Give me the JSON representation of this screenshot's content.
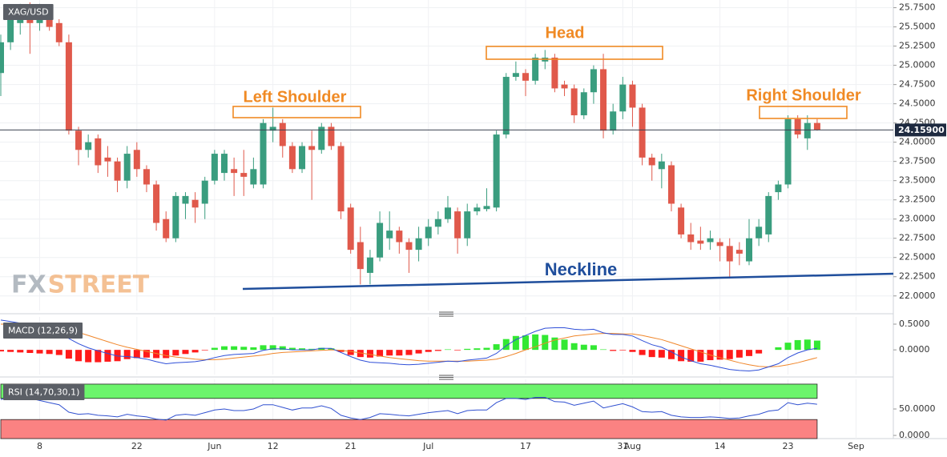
{
  "chart_data": [
    {
      "type": "candlestick",
      "title": "XAG/USD",
      "categories": [
        null,
        null,
        null,
        null,
        "8",
        null,
        null,
        null,
        null,
        null,
        null,
        null,
        null,
        null,
        "22",
        null,
        null,
        null,
        null,
        null,
        null,
        null,
        "Jun",
        null,
        null,
        null,
        null,
        null,
        "12",
        null,
        null,
        null,
        null,
        null,
        null,
        null,
        "21",
        null,
        null,
        null,
        null,
        null,
        null,
        null,
        "Jul",
        null,
        null,
        null,
        null,
        null,
        null,
        null,
        null,
        null,
        "17",
        null,
        null,
        null,
        null,
        null,
        null,
        null,
        null,
        null,
        "31",
        "Aug",
        null,
        null,
        null,
        null,
        null,
        null,
        null,
        null,
        "14",
        null,
        null,
        null,
        null,
        null,
        null,
        "23",
        null,
        null,
        null,
        null,
        null,
        null,
        "Sep",
        null,
        null,
        null
      ],
      "open": [
        24.9,
        25.3,
        25.55,
        25.75,
        25.55,
        25.7,
        25.55,
        25.3,
        24.15,
        23.9,
        24.05,
        23.8,
        23.75,
        23.5,
        23.9,
        23.65,
        23.45,
        23.0,
        22.75,
        23.2,
        23.25,
        23.2,
        23.5,
        23.6,
        23.65,
        23.6,
        23.45,
        23.45,
        24.15,
        24.25,
        23.95,
        23.65,
        23.95,
        23.9,
        24.2,
        23.95,
        23.15,
        22.7,
        22.3,
        22.5,
        22.75,
        22.85,
        22.7,
        22.6,
        22.75,
        22.9,
        23.0,
        23.1,
        22.75,
        23.1,
        23.13,
        23.15,
        24.1,
        24.85,
        24.9,
        24.8,
        25.05,
        25.1,
        24.75,
        24.7,
        24.35,
        24.65,
        24.95,
        24.15,
        24.4,
        24.75,
        24.45,
        23.8,
        23.65,
        23.7,
        23.15,
        22.8,
        22.72,
        22.7,
        22.7,
        22.65,
        22.6,
        22.45,
        22.75,
        22.8,
        23.35,
        23.45,
        24.3,
        24.05,
        24.25,
        null,
        null,
        null,
        null,
        null,
        null,
        null
      ],
      "high": [
        25.4,
        25.7,
        25.8,
        25.82,
        25.8,
        25.75,
        25.6,
        25.4,
        24.2,
        24.1,
        24.1,
        23.95,
        23.8,
        23.95,
        24.0,
        23.7,
        23.5,
        23.1,
        23.35,
        23.35,
        23.35,
        23.55,
        23.9,
        23.9,
        23.8,
        23.9,
        23.8,
        24.3,
        24.45,
        24.3,
        24.0,
        24.0,
        24.15,
        24.25,
        24.25,
        24.0,
        23.2,
        22.9,
        22.6,
        23.1,
        23.1,
        22.9,
        22.75,
        22.9,
        23.0,
        23.1,
        23.3,
        23.15,
        23.2,
        23.2,
        23.4,
        24.15,
        24.9,
        25.05,
        24.95,
        25.15,
        25.2,
        25.15,
        24.8,
        24.75,
        24.7,
        25.0,
        25.15,
        24.5,
        24.85,
        24.8,
        24.5,
        23.85,
        23.85,
        23.75,
        23.2,
        22.95,
        22.9,
        22.85,
        22.75,
        22.75,
        22.7,
        23.0,
        23.0,
        23.35,
        23.5,
        24.35,
        24.35,
        24.35,
        24.3,
        null,
        null,
        null,
        null,
        null,
        null,
        null
      ],
      "low": [
        24.6,
        25.2,
        25.4,
        25.15,
        25.45,
        25.45,
        25.25,
        24.1,
        23.7,
        23.8,
        23.6,
        23.55,
        23.35,
        23.4,
        23.55,
        23.35,
        22.85,
        22.7,
        22.7,
        23.0,
        22.95,
        23.0,
        23.45,
        23.5,
        23.3,
        23.3,
        23.4,
        23.4,
        24.0,
        23.8,
        23.6,
        23.6,
        23.25,
        23.85,
        23.9,
        23.0,
        22.55,
        22.15,
        22.15,
        22.45,
        22.6,
        22.55,
        22.3,
        22.45,
        22.65,
        22.8,
        22.95,
        22.55,
        22.65,
        23.05,
        23.1,
        23.1,
        24.05,
        24.8,
        24.6,
        24.75,
        24.95,
        24.65,
        24.6,
        24.25,
        24.3,
        24.5,
        24.05,
        24.1,
        24.3,
        24.2,
        23.7,
        23.5,
        23.4,
        23.1,
        22.75,
        22.6,
        22.6,
        22.6,
        22.45,
        22.25,
        22.4,
        22.4,
        22.65,
        22.7,
        23.25,
        23.4,
        24.05,
        23.9,
        24.15,
        null,
        null,
        null,
        null,
        null,
        null,
        null
      ],
      "close": [
        25.3,
        25.6,
        25.7,
        25.55,
        25.7,
        25.5,
        25.3,
        24.15,
        23.9,
        24.0,
        23.7,
        23.75,
        23.5,
        23.85,
        23.65,
        23.45,
        22.95,
        22.75,
        23.3,
        23.3,
        23.15,
        23.5,
        23.85,
        23.85,
        23.6,
        23.55,
        23.65,
        24.25,
        24.2,
        23.95,
        23.65,
        23.95,
        23.9,
        24.2,
        23.95,
        23.1,
        22.6,
        22.35,
        22.5,
        22.95,
        22.85,
        22.7,
        22.6,
        22.75,
        22.9,
        23.0,
        23.15,
        22.75,
        23.1,
        23.15,
        23.17,
        24.1,
        24.85,
        24.9,
        24.8,
        25.1,
        25.1,
        24.7,
        24.7,
        24.35,
        24.65,
        24.95,
        24.15,
        24.4,
        24.75,
        24.45,
        23.8,
        23.7,
        23.75,
        23.2,
        22.8,
        22.7,
        22.68,
        22.75,
        22.65,
        22.45,
        22.55,
        22.75,
        22.9,
        23.3,
        23.45,
        24.3,
        24.1,
        24.25,
        24.159,
        null,
        null,
        null,
        null,
        null,
        null,
        null
      ],
      "up_color": "#3a9d7f",
      "down_color": "#e0594b",
      "ylim": [
        21.81,
        25.85
      ],
      "yticks": [
        {
          "value": 22.0,
          "label": "22.0000"
        },
        {
          "value": 22.25,
          "label": "22.2500"
        },
        {
          "value": 22.5,
          "label": "22.5000"
        },
        {
          "value": 22.75,
          "label": "22.7500"
        },
        {
          "value": 23.0,
          "label": "23.0000"
        },
        {
          "value": 23.25,
          "label": "23.2500"
        },
        {
          "value": 23.5,
          "label": "23.5000"
        },
        {
          "value": 23.75,
          "label": "23.7500"
        },
        {
          "value": 24.0,
          "label": "24.0000"
        },
        {
          "value": 24.25,
          "label": "24.2500"
        },
        {
          "value": 24.5,
          "label": "24.5000"
        },
        {
          "value": 24.75,
          "label": "24.7500"
        },
        {
          "value": 25.0,
          "label": "25.0000"
        },
        {
          "value": 25.25,
          "label": "25.2500"
        },
        {
          "value": 25.5,
          "label": "25.5000"
        },
        {
          "value": 25.75,
          "label": "25.7500"
        }
      ],
      "grid": true,
      "last_price": {
        "value": 24.159,
        "label": "24.15900"
      },
      "annotations": [
        "Left Shoulder",
        "Head",
        "Right Shoulder",
        "Neckline"
      ],
      "watermark": [
        "FX",
        "STREET"
      ]
    },
    {
      "type": "macd",
      "title": "MACD (12,26,9)",
      "histogram": [
        -0.03,
        -0.04,
        -0.05,
        -0.06,
        -0.07,
        -0.08,
        -0.1,
        -0.17,
        -0.22,
        -0.24,
        -0.24,
        -0.23,
        -0.22,
        -0.18,
        -0.16,
        -0.15,
        -0.16,
        -0.16,
        -0.11,
        -0.08,
        -0.05,
        -0.01,
        0.04,
        0.07,
        0.07,
        0.06,
        0.05,
        0.09,
        0.09,
        0.07,
        0.04,
        0.03,
        0.02,
        0.04,
        0.03,
        -0.04,
        -0.1,
        -0.14,
        -0.15,
        -0.13,
        -0.11,
        -0.11,
        -0.1,
        -0.07,
        -0.04,
        -0.02,
        0.01,
        -0.01,
        0.02,
        0.03,
        0.04,
        0.11,
        0.21,
        0.27,
        0.28,
        0.3,
        0.29,
        0.24,
        0.2,
        0.13,
        0.1,
        0.09,
        0.01,
        -0.02,
        -0.01,
        -0.04,
        -0.1,
        -0.14,
        -0.15,
        -0.18,
        -0.22,
        -0.23,
        -0.23,
        -0.2,
        -0.19,
        -0.18,
        -0.15,
        -0.12,
        -0.07,
        0.0,
        0.05,
        0.14,
        0.19,
        0.2,
        0.18,
        null,
        null,
        null,
        null,
        null,
        null,
        null
      ],
      "macd": [
        0.58,
        0.55,
        0.52,
        0.48,
        0.44,
        0.4,
        0.34,
        0.22,
        0.12,
        0.04,
        -0.02,
        -0.07,
        -0.12,
        -0.13,
        -0.15,
        -0.18,
        -0.23,
        -0.27,
        -0.25,
        -0.24,
        -0.23,
        -0.2,
        -0.15,
        -0.11,
        -0.09,
        -0.08,
        -0.07,
        -0.01,
        0.02,
        0.02,
        0.0,
        0.0,
        0.0,
        0.03,
        0.03,
        -0.05,
        -0.13,
        -0.2,
        -0.24,
        -0.25,
        -0.26,
        -0.28,
        -0.29,
        -0.28,
        -0.26,
        -0.24,
        -0.22,
        -0.23,
        -0.2,
        -0.18,
        -0.16,
        -0.07,
        0.08,
        0.2,
        0.28,
        0.36,
        0.42,
        0.43,
        0.43,
        0.4,
        0.39,
        0.4,
        0.33,
        0.3,
        0.3,
        0.27,
        0.18,
        0.1,
        0.05,
        -0.04,
        -0.14,
        -0.21,
        -0.27,
        -0.3,
        -0.34,
        -0.38,
        -0.4,
        -0.41,
        -0.39,
        -0.33,
        -0.27,
        -0.15,
        -0.06,
        0.0,
        0.03,
        null,
        null,
        null,
        null,
        null,
        null,
        null
      ],
      "signal": [
        0.5,
        0.5,
        0.5,
        0.49,
        0.48,
        0.46,
        0.44,
        0.39,
        0.34,
        0.28,
        0.22,
        0.16,
        0.1,
        0.05,
        0.01,
        -0.03,
        -0.07,
        -0.11,
        -0.14,
        -0.16,
        -0.18,
        -0.19,
        -0.19,
        -0.18,
        -0.16,
        -0.14,
        -0.12,
        -0.1,
        -0.07,
        -0.05,
        -0.04,
        -0.03,
        -0.02,
        -0.01,
        0.0,
        -0.01,
        -0.03,
        -0.06,
        -0.09,
        -0.12,
        -0.15,
        -0.17,
        -0.19,
        -0.21,
        -0.22,
        -0.22,
        -0.22,
        -0.22,
        -0.22,
        -0.21,
        -0.2,
        -0.18,
        -0.13,
        -0.07,
        0.0,
        0.06,
        0.13,
        0.19,
        0.23,
        0.27,
        0.29,
        0.31,
        0.32,
        0.32,
        0.31,
        0.31,
        0.28,
        0.24,
        0.2,
        0.14,
        0.08,
        0.02,
        -0.04,
        -0.1,
        -0.15,
        -0.2,
        -0.25,
        -0.29,
        -0.32,
        -0.33,
        -0.32,
        -0.29,
        -0.25,
        -0.2,
        -0.15,
        null,
        null,
        null,
        null,
        null,
        null,
        null
      ],
      "up_color": "#33e833",
      "down_color": "#ff1a1a",
      "macd_color": "#2f4fd8",
      "signal_color": "#f0862a",
      "ylim": [
        -0.48,
        0.64
      ],
      "yticks": [
        {
          "value": 0.5,
          "label": "0.5000"
        },
        {
          "value": 0.0,
          "label": "0.0000"
        }
      ]
    },
    {
      "type": "line",
      "title": "RSI (14,70,30,1)",
      "values": [
        68,
        72,
        74,
        70,
        66,
        62,
        58,
        44,
        40,
        41,
        38,
        37,
        35,
        40,
        37,
        35,
        31,
        29,
        38,
        40,
        38,
        43,
        48,
        50,
        47,
        47,
        50,
        58,
        58,
        53,
        48,
        52,
        52,
        56,
        51,
        38,
        33,
        30,
        34,
        41,
        40,
        38,
        37,
        40,
        43,
        45,
        47,
        41,
        47,
        48,
        48,
        62,
        70,
        70,
        68,
        72,
        72,
        64,
        63,
        57,
        61,
        65,
        52,
        56,
        60,
        54,
        45,
        44,
        45,
        38,
        35,
        34,
        34,
        35,
        34,
        32,
        33,
        37,
        40,
        46,
        48,
        62,
        58,
        61,
        59,
        null,
        null,
        null,
        null,
        null,
        null,
        null
      ],
      "color": "#3050d0",
      "bands": [
        {
          "from": 70,
          "to": 97,
          "color": "#6cf46c"
        },
        {
          "from": -6,
          "to": 30,
          "color": "#fb8282"
        }
      ],
      "ylim": [
        -6,
        106
      ],
      "yticks": [
        {
          "value": 50,
          "label": "50.0000"
        },
        {
          "value": 0,
          "label": "0.0000"
        }
      ]
    }
  ]
}
